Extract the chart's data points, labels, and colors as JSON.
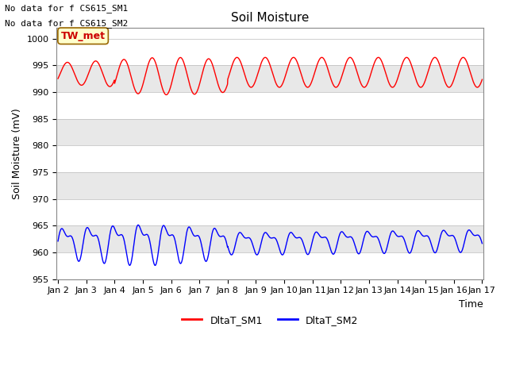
{
  "title": "Soil Moisture",
  "ylabel": "Soil Moisture (mV)",
  "xlabel": "Time",
  "ylim": [
    955,
    1002
  ],
  "yticks": [
    955,
    960,
    965,
    970,
    975,
    980,
    985,
    990,
    995,
    1000
  ],
  "x_start": 2,
  "x_end": 17,
  "xtick_positions": [
    2,
    3,
    4,
    5,
    6,
    7,
    8,
    9,
    10,
    11,
    12,
    13,
    14,
    15,
    16,
    17
  ],
  "xtick_labels": [
    "Jan 2",
    "Jan 3",
    "Jan 4",
    "Jan 5",
    "Jan 6",
    "Jan 7",
    "Jan 8",
    "Jan 9",
    "Jan 10",
    "Jan 11",
    "Jan 12",
    "Jan 13",
    "Jan 14",
    "Jan 15",
    "Jan 16",
    "Jan 17"
  ],
  "color_sm1": "#ff0000",
  "color_sm2": "#0000ff",
  "band_color_light": "#e8e8e8",
  "band_color_white": "#ffffff",
  "annotation1": "No data for f CS615_SM1",
  "annotation2": "No data for f CS615_SM2",
  "tw_met_label": "TW_met",
  "tw_met_bg": "#ffffcc",
  "tw_met_border": "#996600",
  "legend_label1": "DltaT_SM1",
  "legend_label2": "DltaT_SM2",
  "title_fontsize": 11,
  "axis_label_fontsize": 9,
  "tick_fontsize": 8,
  "annotation_fontsize": 8,
  "legend_fontsize": 9,
  "n_points": 2000,
  "sm1_base": 993.5,
  "sm1_amp_base": 2.5,
  "sm2_base": 962.0,
  "sm2_amp_base": 2.5
}
